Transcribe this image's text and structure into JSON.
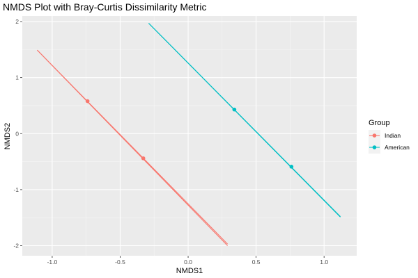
{
  "chart_data": {
    "type": "line",
    "title": "NMDS Plot with Bray-Curtis Dissimilarity Metric",
    "xlabel": "NMDS1",
    "ylabel": "NMDS2",
    "xlim": [
      -1.22,
      1.24
    ],
    "ylim": [
      -2.18,
      2.1
    ],
    "x_ticks": [
      -1.0,
      -0.5,
      0.0,
      0.5,
      1.0
    ],
    "x_tick_labels": [
      "-1.0",
      "-0.5",
      "0.0",
      "0.5",
      "1.0"
    ],
    "y_ticks": [
      -2,
      -1,
      0,
      1,
      2
    ],
    "y_tick_labels": [
      "-2",
      "-1",
      "0",
      "1",
      "2"
    ],
    "grid": true,
    "background": "#ebebeb",
    "legend": {
      "title": "Group",
      "position": "right"
    },
    "series": [
      {
        "name": "Indian",
        "color": "#f8766d",
        "points": [
          {
            "x": -0.74,
            "y": 0.58
          },
          {
            "x": -0.33,
            "y": -0.44
          }
        ],
        "lines": [
          [
            {
              "x": -1.11,
              "y": 1.49
            },
            {
              "x": 0.29,
              "y": -2.0
            }
          ],
          [
            {
              "x": -1.11,
              "y": 1.49
            },
            {
              "x": 0.29,
              "y": -1.97
            }
          ]
        ]
      },
      {
        "name": "American",
        "color": "#00bfc4",
        "points": [
          {
            "x": 0.34,
            "y": 0.43
          },
          {
            "x": 0.76,
            "y": -0.59
          }
        ],
        "lines": [
          [
            {
              "x": -0.29,
              "y": 1.97
            },
            {
              "x": 1.12,
              "y": -1.49
            }
          ],
          [
            {
              "x": -0.29,
              "y": 1.97
            },
            {
              "x": 1.12,
              "y": -1.48
            }
          ]
        ]
      }
    ]
  }
}
